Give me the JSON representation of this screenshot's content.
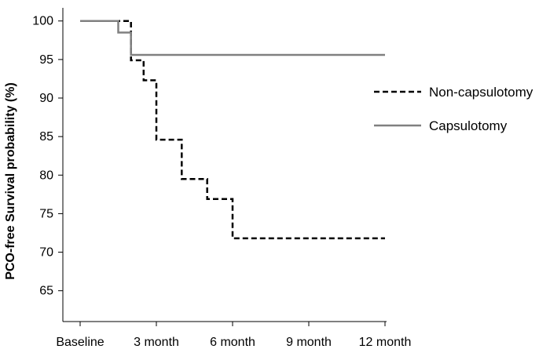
{
  "chart_data": {
    "type": "line",
    "subtype": "kaplan-meier step",
    "title": "",
    "xlabel": "",
    "ylabel": "PCO-free Survival probability (%)",
    "x_ticks": [
      {
        "value": 0,
        "label": "Baseline"
      },
      {
        "value": 3,
        "label": "3 month"
      },
      {
        "value": 6,
        "label": "6 month"
      },
      {
        "value": 9,
        "label": "9 month"
      },
      {
        "value": 12,
        "label": "12 month"
      }
    ],
    "y_ticks": [
      65,
      70,
      75,
      80,
      85,
      90,
      95,
      100
    ],
    "xlim": [
      0,
      12
    ],
    "ylim": [
      61,
      101.5
    ],
    "grid": false,
    "legend_position": "right",
    "series": [
      {
        "name": "Non-capsulotomy",
        "style": "dashed",
        "color": "#000000",
        "points": [
          [
            0,
            100
          ],
          [
            2.0,
            100
          ],
          [
            2.0,
            94.9
          ],
          [
            2.5,
            94.9
          ],
          [
            2.5,
            92.3
          ],
          [
            3.0,
            92.3
          ],
          [
            3.0,
            84.6
          ],
          [
            4.0,
            84.6
          ],
          [
            4.0,
            79.5
          ],
          [
            5.0,
            79.5
          ],
          [
            5.0,
            76.9
          ],
          [
            6.0,
            76.9
          ],
          [
            6.0,
            71.8
          ],
          [
            12.0,
            71.8
          ]
        ]
      },
      {
        "name": "Capsulotomy",
        "style": "solid",
        "color": "#808080",
        "points": [
          [
            0,
            100
          ],
          [
            1.5,
            100
          ],
          [
            1.5,
            98.5
          ],
          [
            2.0,
            98.5
          ],
          [
            2.0,
            95.6
          ],
          [
            12.0,
            95.6
          ]
        ]
      }
    ]
  }
}
